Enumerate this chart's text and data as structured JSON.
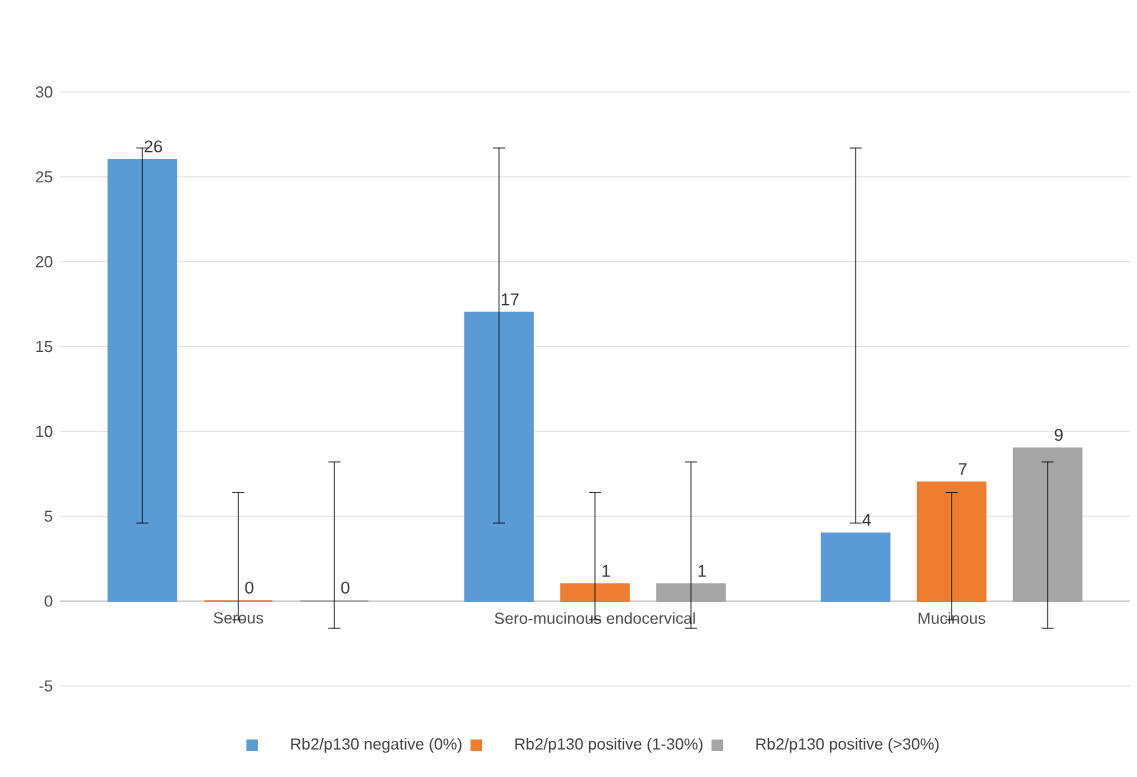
{
  "chart_data": {
    "type": "bar",
    "categories": [
      "Serous",
      "Sero-mucinous endocervical",
      "Mucinous"
    ],
    "series": [
      {
        "name": "Rb2/p130 negative (0%)",
        "color": "#5b9bd5",
        "values": [
          26,
          17,
          4
        ],
        "errors": [
          [
            4.6,
            26.7
          ],
          [
            4.6,
            26.7
          ],
          [
            4.6,
            26.7
          ]
        ]
      },
      {
        "name": "Rb2/p130 positive (1-30%)",
        "color": "#ed7d31",
        "values": [
          0,
          1,
          7
        ],
        "errors": [
          [
            -1.1,
            6.4
          ],
          [
            -1.1,
            6.4
          ],
          [
            -1.1,
            6.4
          ]
        ]
      },
      {
        "name": "Rb2/p130 positive (>30%)",
        "color": "#a5a5a5",
        "values": [
          0,
          1,
          9
        ],
        "errors": [
          [
            -1.6,
            8.2
          ],
          [
            -1.6,
            8.2
          ],
          [
            -1.6,
            8.2
          ]
        ]
      }
    ],
    "ylim": [
      -5,
      30
    ],
    "yticks": [
      -5,
      0,
      5,
      10,
      15,
      20,
      25,
      30
    ],
    "grid": "y",
    "legend": "bottom",
    "data_labels": true
  }
}
